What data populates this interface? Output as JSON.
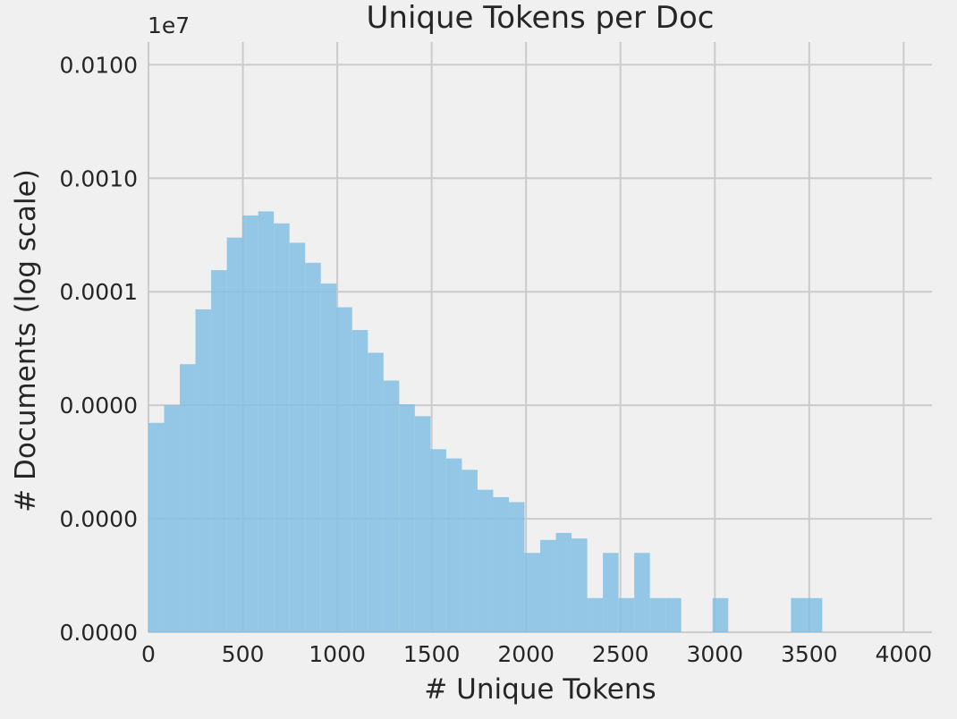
{
  "chart_data": {
    "type": "bar",
    "title": "Unique Tokens per Doc",
    "xlabel": "# Unique Tokens",
    "ylabel": "# Documents (log scale)",
    "y_offset_label": "1e7",
    "y_scale": "log",
    "grid": true,
    "xlim": [
      0,
      4150
    ],
    "ylim_log10": [
      0,
      5.2
    ],
    "x_ticks": [
      {
        "value": 0,
        "label": "0"
      },
      {
        "value": 500,
        "label": "500"
      },
      {
        "value": 1000,
        "label": "1000"
      },
      {
        "value": 1500,
        "label": "1500"
      },
      {
        "value": 2000,
        "label": "2000"
      },
      {
        "value": 2500,
        "label": "2500"
      },
      {
        "value": 3000,
        "label": "3000"
      },
      {
        "value": 3500,
        "label": "3500"
      },
      {
        "value": 4000,
        "label": "4000"
      }
    ],
    "y_ticks": [
      {
        "value": 1,
        "label": "0.0000"
      },
      {
        "value": 10,
        "label": "0.0000"
      },
      {
        "value": 100,
        "label": "0.0000"
      },
      {
        "value": 1000,
        "label": "0.0001"
      },
      {
        "value": 10000,
        "label": "0.0010"
      },
      {
        "value": 100000,
        "label": "0.0100"
      }
    ],
    "bin_width": 83,
    "bins": [
      {
        "x": 0,
        "count": 70
      },
      {
        "x": 83,
        "count": 100
      },
      {
        "x": 166,
        "count": 230
      },
      {
        "x": 249,
        "count": 700
      },
      {
        "x": 332,
        "count": 1550
      },
      {
        "x": 415,
        "count": 3000
      },
      {
        "x": 498,
        "count": 4700
      },
      {
        "x": 581,
        "count": 5100
      },
      {
        "x": 664,
        "count": 4000
      },
      {
        "x": 747,
        "count": 2700
      },
      {
        "x": 830,
        "count": 1800
      },
      {
        "x": 913,
        "count": 1180
      },
      {
        "x": 996,
        "count": 730
      },
      {
        "x": 1079,
        "count": 460
      },
      {
        "x": 1162,
        "count": 290
      },
      {
        "x": 1245,
        "count": 165
      },
      {
        "x": 1328,
        "count": 102
      },
      {
        "x": 1411,
        "count": 80
      },
      {
        "x": 1494,
        "count": 41
      },
      {
        "x": 1577,
        "count": 34
      },
      {
        "x": 1660,
        "count": 27
      },
      {
        "x": 1743,
        "count": 18
      },
      {
        "x": 1826,
        "count": 15.5
      },
      {
        "x": 1909,
        "count": 14
      },
      {
        "x": 1992,
        "count": 5
      },
      {
        "x": 2075,
        "count": 6.5
      },
      {
        "x": 2158,
        "count": 7.5
      },
      {
        "x": 2241,
        "count": 6.7
      },
      {
        "x": 2324,
        "count": 2
      },
      {
        "x": 2407,
        "count": 5
      },
      {
        "x": 2490,
        "count": 2
      },
      {
        "x": 2573,
        "count": 5
      },
      {
        "x": 2656,
        "count": 2
      },
      {
        "x": 2739,
        "count": 2
      },
      {
        "x": 2822,
        "count": 1
      },
      {
        "x": 2905,
        "count": 1
      },
      {
        "x": 2988,
        "count": 2
      },
      {
        "x": 3071,
        "count": 1
      },
      {
        "x": 3320,
        "count": 1
      },
      {
        "x": 3403,
        "count": 2
      },
      {
        "x": 3486,
        "count": 2
      },
      {
        "x": 4067,
        "count": 1
      }
    ],
    "bar_color": "#82c0e3"
  }
}
